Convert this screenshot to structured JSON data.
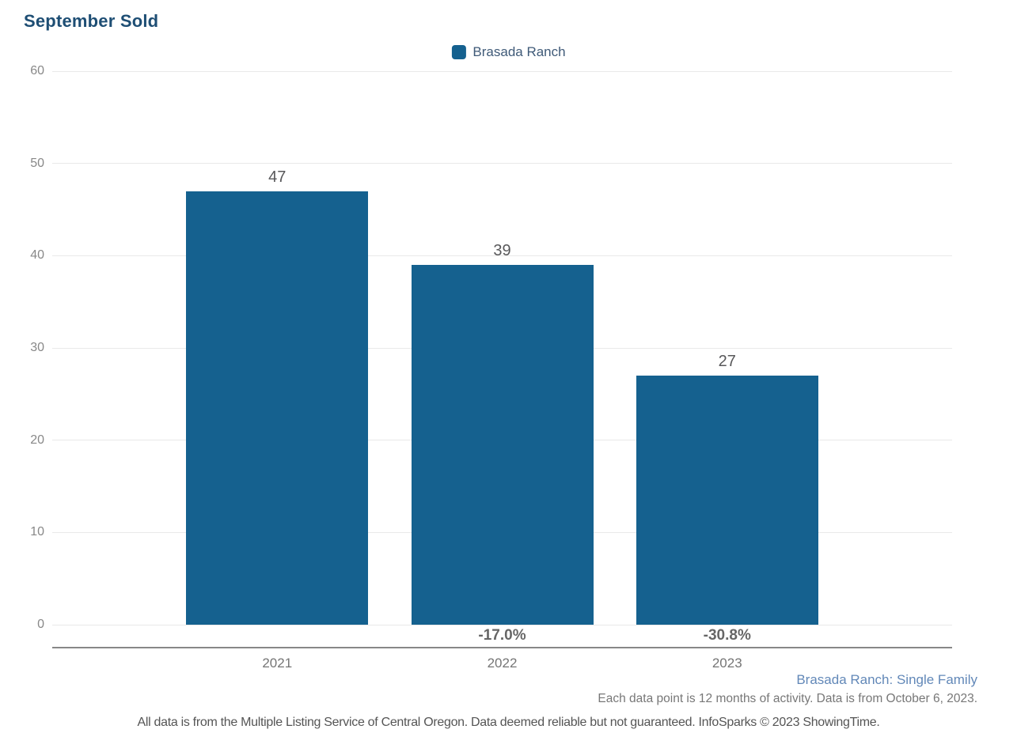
{
  "chart_data": {
    "type": "bar",
    "title": "September Sold",
    "series_name": "Brasada Ranch",
    "categories": [
      "2021",
      "2022",
      "2023"
    ],
    "values": [
      47,
      39,
      27
    ],
    "pct_change": [
      "",
      "-17.0%",
      "-30.8%"
    ],
    "xlabel": "",
    "ylabel": "",
    "ylim": [
      0,
      60
    ],
    "yticks": [
      0,
      10,
      20,
      30,
      40,
      50,
      60
    ],
    "grid": true,
    "legend_position": "top-center",
    "bar_color": "#15618f",
    "title_color": "#1e4e74"
  },
  "footnotes": {
    "series_note": "Brasada Ranch: Single Family",
    "data_note": "Each data point is 12 months of activity. Data is from October 6, 2023.",
    "disclaimer": "All data is from the Multiple Listing Service of Central Oregon. Data deemed reliable but not guaranteed. InfoSparks © 2023 ShowingTime."
  }
}
